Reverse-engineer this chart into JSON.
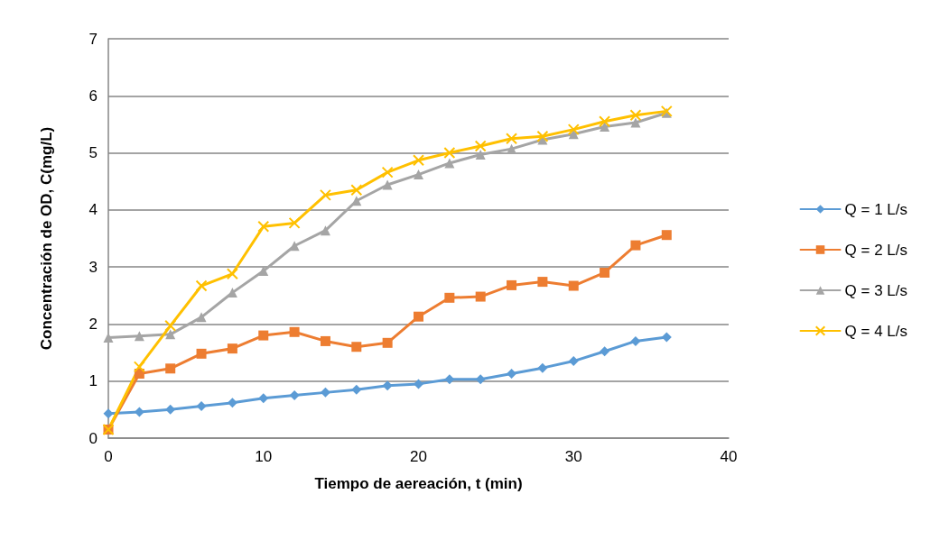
{
  "chart_data": {
    "type": "line",
    "xlabel": "Tiempo de aereación, t (min)",
    "ylabel": "Concentración de OD, C(mg/L)",
    "x": [
      0,
      2,
      4,
      6,
      8,
      10,
      12,
      14,
      16,
      18,
      20,
      22,
      24,
      26,
      28,
      30,
      32,
      34,
      36
    ],
    "xlim": [
      0,
      40
    ],
    "xticks": [
      0,
      10,
      20,
      30,
      40
    ],
    "ylim": [
      0,
      7
    ],
    "yticks": [
      0,
      1,
      2,
      3,
      4,
      5,
      6,
      7
    ],
    "grid": "y",
    "legend": "right",
    "series": [
      {
        "name": "Q = 1 L/s",
        "color": "#5b9bd5",
        "marker": "diamond",
        "values": [
          0.43,
          0.46,
          0.5,
          0.56,
          0.62,
          0.7,
          0.75,
          0.8,
          0.85,
          0.92,
          0.95,
          1.03,
          1.03,
          1.13,
          1.23,
          1.35,
          1.52,
          1.7,
          1.77
        ]
      },
      {
        "name": "Q = 2 L/s",
        "color": "#ed7d31",
        "marker": "square",
        "values": [
          0.15,
          1.13,
          1.22,
          1.48,
          1.57,
          1.8,
          1.86,
          1.7,
          1.6,
          1.67,
          2.13,
          2.46,
          2.48,
          2.68,
          2.74,
          2.67,
          2.9,
          3.38,
          3.56
        ]
      },
      {
        "name": "Q = 3 L/s",
        "color": "#a5a5a5",
        "marker": "triangle",
        "values": [
          1.76,
          1.79,
          1.82,
          2.12,
          2.55,
          2.93,
          3.37,
          3.64,
          4.16,
          4.44,
          4.62,
          4.82,
          4.97,
          5.07,
          5.23,
          5.33,
          5.46,
          5.53,
          5.7
        ]
      },
      {
        "name": "Q = 4 L/s",
        "color": "#ffc000",
        "marker": "cross",
        "values": [
          0.15,
          1.25,
          1.97,
          2.67,
          2.88,
          3.71,
          3.77,
          4.26,
          4.35,
          4.66,
          4.87,
          5.0,
          5.12,
          5.25,
          5.29,
          5.41,
          5.55,
          5.66,
          5.73
        ]
      }
    ]
  }
}
